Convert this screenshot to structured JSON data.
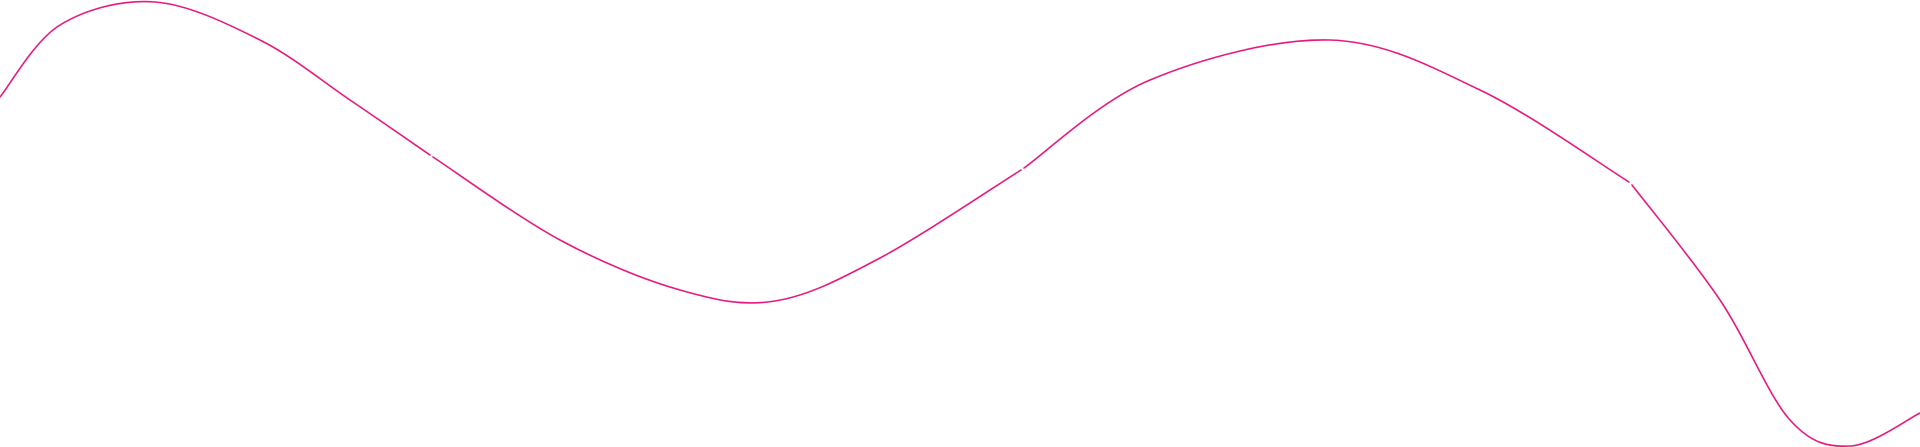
{
  "decoration": {
    "type": "wave-line",
    "stroke_color": "#e8197e",
    "background": "#ffffff",
    "segments": 4
  }
}
